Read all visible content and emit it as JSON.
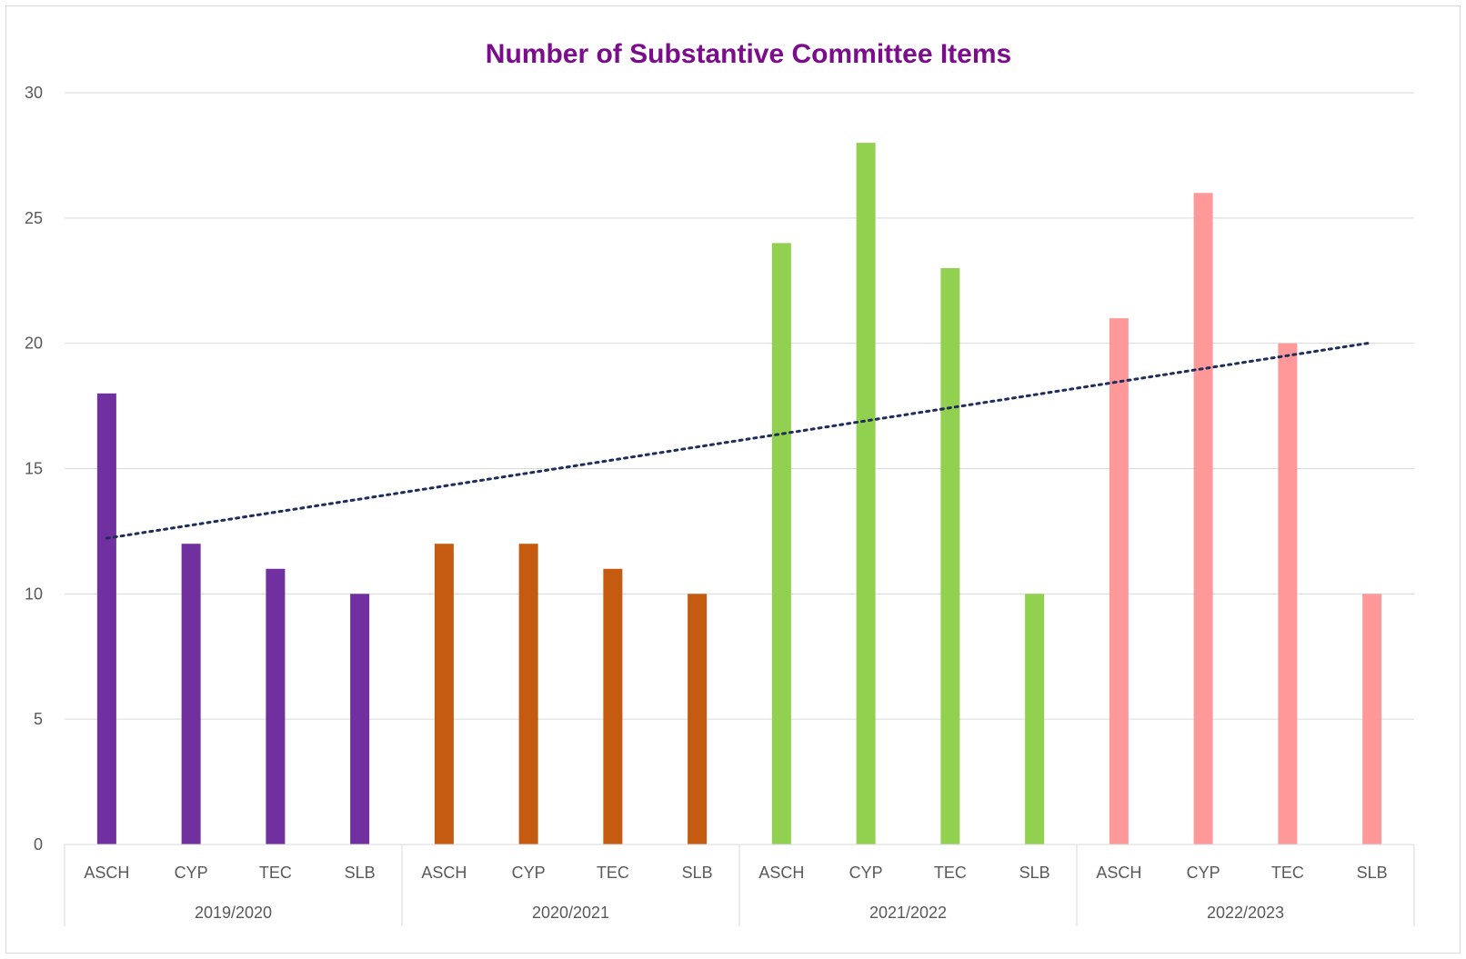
{
  "chart_data": {
    "type": "bar",
    "title": "Number of Substantive Committee Items",
    "xlabel": "",
    "ylabel": "",
    "ylim": [
      0,
      30
    ],
    "yticks": [
      0,
      5,
      10,
      15,
      20,
      25,
      30
    ],
    "grid": true,
    "legend": "none",
    "groups": [
      {
        "label": "2019/2020",
        "color": "#7030A0",
        "categories": [
          "ASCH",
          "CYP",
          "TEC",
          "SLB"
        ],
        "values": [
          18,
          12,
          11,
          10
        ]
      },
      {
        "label": "2020/2021",
        "color": "#C55A11",
        "categories": [
          "ASCH",
          "CYP",
          "TEC",
          "SLB"
        ],
        "values": [
          12,
          12,
          11,
          10
        ]
      },
      {
        "label": "2021/2022",
        "color": "#92D050",
        "categories": [
          "ASCH",
          "CYP",
          "TEC",
          "SLB"
        ],
        "values": [
          24,
          28,
          23,
          10
        ]
      },
      {
        "label": "2022/2023",
        "color": "#FF9999",
        "categories": [
          "ASCH",
          "CYP",
          "TEC",
          "SLB"
        ],
        "values": [
          21,
          26,
          20,
          10
        ]
      }
    ],
    "trendline": {
      "type": "linear",
      "style": "dotted",
      "color": "#1F2D5A"
    }
  },
  "colors": {
    "title": "#7B0C8C",
    "gridline": "#d9d9d9",
    "axis_text": "#595959"
  }
}
